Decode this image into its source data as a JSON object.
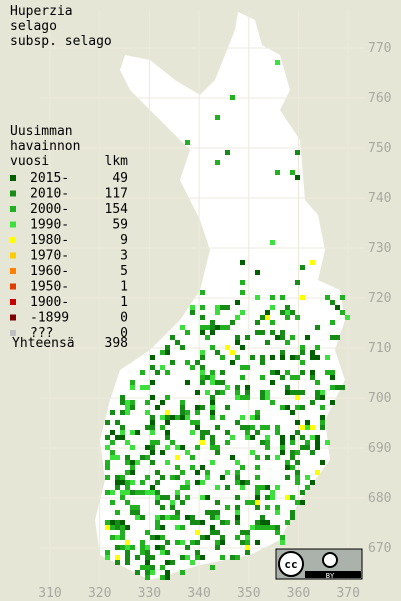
{
  "title": [
    "Huperzia",
    "selago",
    "subsp. selago"
  ],
  "legend": {
    "heading": [
      "Uusimman",
      "havainnon",
      "vuosi"
    ],
    "count_heading": "lkm",
    "rows": [
      {
        "label": "2015-",
        "count": 49,
        "color": "#006000"
      },
      {
        "label": "2010-",
        "count": 117,
        "color": "#168c16"
      },
      {
        "label": "2000-",
        "count": 154,
        "color": "#20b020"
      },
      {
        "label": "1990-",
        "count": 59,
        "color": "#3ce03c"
      },
      {
        "label": "1980-",
        "count": 9,
        "color": "#ffff00"
      },
      {
        "label": "1970-",
        "count": 3,
        "color": "#ffcc00"
      },
      {
        "label": "1960-",
        "count": 5,
        "color": "#ff7f00"
      },
      {
        "label": "1950-",
        "count": 1,
        "color": "#e03c00"
      },
      {
        "label": "1900-",
        "count": 1,
        "color": "#c80000"
      },
      {
        "label": "-1899",
        "count": 0,
        "color": "#800000"
      },
      {
        "label": "???",
        "count": 0,
        "color": "#c0c0c0"
      }
    ],
    "total_label": "Yhteensä",
    "total": 398
  },
  "map": {
    "xticks": [
      310,
      320,
      330,
      340,
      350,
      360,
      370
    ],
    "yticks": [
      670,
      680,
      690,
      700,
      710,
      720,
      730,
      740,
      750,
      760,
      770
    ]
  },
  "badge": {
    "cc": "cc",
    "by": "BY"
  }
}
